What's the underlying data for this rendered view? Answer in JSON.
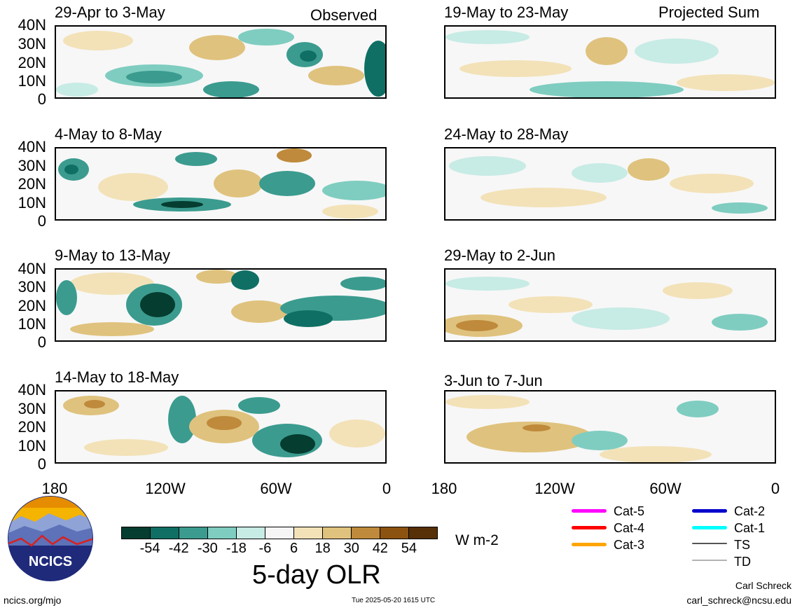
{
  "header": {
    "left_label": "Observed",
    "right_label": "Projected Sum"
  },
  "panels_left": [
    {
      "title": "29-Apr to 3-May"
    },
    {
      "title": "4-May to 8-May"
    },
    {
      "title": "9-May to 13-May"
    },
    {
      "title": "14-May to 18-May"
    }
  ],
  "panels_right": [
    {
      "title": "19-May to 23-May"
    },
    {
      "title": "24-May to 28-May"
    },
    {
      "title": "29-May to 2-Jun"
    },
    {
      "title": "3-Jun to 7-Jun"
    }
  ],
  "lat_labels": [
    "40N",
    "30N",
    "20N",
    "10N",
    "0"
  ],
  "lon_labels": [
    "180",
    "120W",
    "60W",
    "0"
  ],
  "colorbar": {
    "ticks": [
      "-54",
      "-42",
      "-30",
      "-18",
      "-6",
      "6",
      "18",
      "30",
      "42",
      "54"
    ],
    "colors": [
      "#053d30",
      "#0f6f64",
      "#3b9b8f",
      "#7fcdc0",
      "#c7ebe5",
      "#f5f5f5",
      "#f3e2b8",
      "#dfc27d",
      "#bf8a3b",
      "#8c520f",
      "#573008"
    ],
    "units": "W m-2",
    "title": "5-day OLR"
  },
  "storm_legend": [
    {
      "label": "Cat-5",
      "color": "#ff00ff"
    },
    {
      "label": "Cat-4",
      "color": "#ff0000"
    },
    {
      "label": "Cat-3",
      "color": "#ffa500"
    },
    {
      "label": "Cat-2",
      "color": "#0000cc"
    },
    {
      "label": "Cat-1",
      "color": "#00ffff"
    },
    {
      "label": "TS",
      "color": "#555555"
    },
    {
      "label": "TD",
      "color": "#b3b3b3"
    }
  ],
  "logo": {
    "text": "NCICS"
  },
  "footer": {
    "website": "ncics.org/mjo",
    "timestamp": "Tue 2025-05-20 1615 UTC",
    "author": "Carl Schreck",
    "email": "carl_schreck@ncsu.edu"
  }
}
